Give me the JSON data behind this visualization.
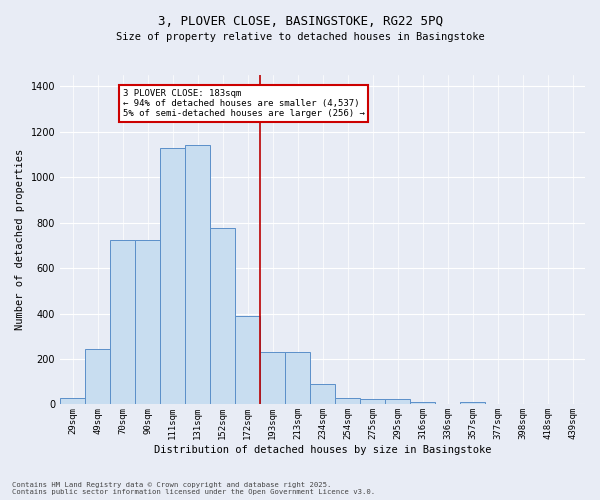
{
  "title_line1": "3, PLOVER CLOSE, BASINGSTOKE, RG22 5PQ",
  "title_line2": "Size of property relative to detached houses in Basingstoke",
  "xlabel": "Distribution of detached houses by size in Basingstoke",
  "ylabel": "Number of detached properties",
  "categories": [
    "29sqm",
    "49sqm",
    "70sqm",
    "90sqm",
    "111sqm",
    "131sqm",
    "152sqm",
    "172sqm",
    "193sqm",
    "213sqm",
    "234sqm",
    "254sqm",
    "275sqm",
    "295sqm",
    "316sqm",
    "336sqm",
    "357sqm",
    "377sqm",
    "398sqm",
    "418sqm",
    "439sqm"
  ],
  "values": [
    30,
    245,
    725,
    725,
    1130,
    1140,
    775,
    390,
    230,
    230,
    88,
    30,
    22,
    22,
    12,
    0,
    10,
    0,
    0,
    0,
    0
  ],
  "bar_color": "#c8ddf0",
  "bar_edge_color": "#5b8fc9",
  "background_color": "#e8ecf5",
  "vline_color": "#bb0000",
  "vline_x_index": 8,
  "annotation_title": "3 PLOVER CLOSE: 183sqm",
  "annotation_line2": "← 94% of detached houses are smaller (4,537)",
  "annotation_line3": "5% of semi-detached houses are larger (256) →",
  "annotation_box_edgecolor": "#cc0000",
  "ylim": [
    0,
    1450
  ],
  "yticks": [
    0,
    200,
    400,
    600,
    800,
    1000,
    1200,
    1400
  ],
  "footer_line1": "Contains HM Land Registry data © Crown copyright and database right 2025.",
  "footer_line2": "Contains public sector information licensed under the Open Government Licence v3.0."
}
